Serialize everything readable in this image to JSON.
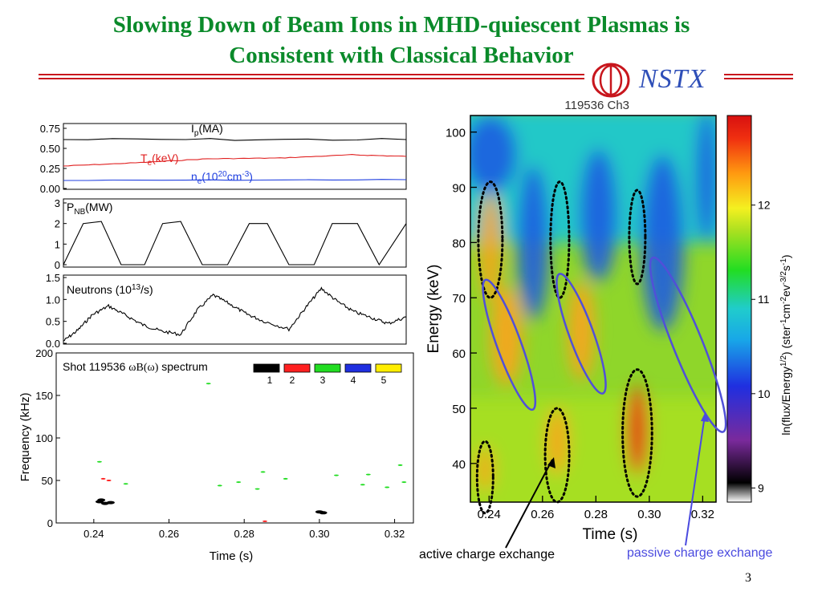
{
  "slide": {
    "title_line1": "Slowing Down of Beam Ions in MHD-quiescent Plasmas is",
    "title_line2": "Consistent with Classical Behavior",
    "logo_text": "NSTX",
    "page_number": "3"
  },
  "colors": {
    "title_green": "#0a8a2a",
    "rule_red": "#c8161d",
    "nstx_blue": "#2f4fb8",
    "annotation_blue": "#4a4adf"
  },
  "chart_data": [
    {
      "type": "line",
      "panel": "plasma-parameters",
      "ylim": [
        0,
        0.75
      ],
      "yticks": [
        "0.75",
        "0.50",
        "0.25",
        "0.00"
      ],
      "xlim": [
        0.23,
        0.325
      ],
      "series": [
        {
          "name": "Ip(MA)",
          "label_parts": [
            "I",
            "p",
            "(MA)"
          ],
          "color": "#000000",
          "x": [
            0.23,
            0.325
          ],
          "values": [
            0.61,
            0.61
          ]
        },
        {
          "name": "Te(keV)",
          "label_parts": [
            "T",
            "e",
            "(keV)"
          ],
          "color": "#e02020",
          "x": [
            0.23,
            0.25,
            0.27,
            0.29,
            0.31,
            0.325
          ],
          "values": [
            0.28,
            0.32,
            0.37,
            0.38,
            0.42,
            0.4
          ]
        },
        {
          "name": "ne(10^20cm^-3)",
          "label_parts": [
            "n",
            "e",
            "(10",
            "20",
            "cm",
            "-3",
            ")"
          ],
          "color": "#2040e0",
          "x": [
            0.23,
            0.325
          ],
          "values": [
            0.1,
            0.11
          ]
        }
      ]
    },
    {
      "type": "line",
      "panel": "beam-power",
      "ylabel_parts": [
        "P",
        "NB",
        "(MW)"
      ],
      "ylim": [
        0,
        3
      ],
      "yticks": [
        "3",
        "2",
        "1",
        "0"
      ],
      "xlim": [
        0.23,
        0.325
      ],
      "x": [
        0.23,
        0.2355,
        0.2405,
        0.246,
        0.2525,
        0.2575,
        0.2625,
        0.2685,
        0.2755,
        0.2815,
        0.2865,
        0.2925,
        0.2995,
        0.3045,
        0.3115,
        0.3175,
        0.325
      ],
      "values": [
        0,
        2.0,
        2.1,
        0,
        0,
        2.0,
        2.1,
        0,
        0,
        2.0,
        2.0,
        0,
        0,
        2.0,
        2.0,
        0,
        2.0
      ]
    },
    {
      "type": "line",
      "panel": "neutrons",
      "label": "Neutrons (10",
      "label_sup": "13",
      "label_end": "/s)",
      "ylim": [
        0,
        1.5
      ],
      "yticks": [
        "1.5",
        "1.0",
        "0.5",
        "0.0"
      ],
      "xlim": [
        0.23,
        0.325
      ],
      "x": [
        0.23,
        0.234,
        0.238,
        0.2425,
        0.247,
        0.252,
        0.257,
        0.2625,
        0.267,
        0.2715,
        0.276,
        0.2805,
        0.285,
        0.2925,
        0.297,
        0.3015,
        0.306,
        0.3105,
        0.3155,
        0.32,
        0.325
      ],
      "values": [
        0.05,
        0.3,
        0.65,
        0.85,
        0.65,
        0.42,
        0.28,
        0.2,
        0.75,
        1.1,
        0.9,
        0.68,
        0.52,
        0.32,
        0.8,
        1.25,
        0.95,
        0.72,
        0.58,
        0.45,
        0.6
      ]
    },
    {
      "type": "scatter",
      "panel": "mhd-spectrum",
      "title_prefix": "Shot 119536 ",
      "title_symbol": "ωB(ω)",
      "title_suffix": " spectrum",
      "xlabel": "Time (s)",
      "ylabel": "Frequency (kHz)",
      "xlim": [
        0.23,
        0.325
      ],
      "ylim": [
        0,
        200
      ],
      "xticks": [
        "0.24",
        "0.26",
        "0.28",
        "0.30",
        "0.32"
      ],
      "yticks": [
        "200",
        "150",
        "100",
        "50",
        "0"
      ],
      "legend": [
        {
          "label": "1",
          "color": "#000000"
        },
        {
          "label": "2",
          "color": "#ff2020"
        },
        {
          "label": "3",
          "color": "#22dd22"
        },
        {
          "label": "4",
          "color": "#1f2fe0"
        },
        {
          "label": "5",
          "color": "#ffee00"
        }
      ],
      "points": [
        {
          "x": 0.2415,
          "y": 25,
          "n": 1
        },
        {
          "x": 0.243,
          "y": 23,
          "n": 1
        },
        {
          "x": 0.2445,
          "y": 24,
          "n": 1
        },
        {
          "x": 0.242,
          "y": 27,
          "n": 1
        },
        {
          "x": 0.301,
          "y": 12,
          "n": 1
        },
        {
          "x": 0.3,
          "y": 13,
          "n": 1
        },
        {
          "x": 0.2425,
          "y": 52,
          "n": 2
        },
        {
          "x": 0.244,
          "y": 50,
          "n": 2
        },
        {
          "x": 0.2415,
          "y": 72,
          "n": 3
        },
        {
          "x": 0.2485,
          "y": 46,
          "n": 3
        },
        {
          "x": 0.2705,
          "y": 164,
          "n": 3
        },
        {
          "x": 0.2735,
          "y": 44,
          "n": 3
        },
        {
          "x": 0.2785,
          "y": 48,
          "n": 3
        },
        {
          "x": 0.285,
          "y": 60,
          "n": 3
        },
        {
          "x": 0.2835,
          "y": 40,
          "n": 3
        },
        {
          "x": 0.291,
          "y": 52,
          "n": 3
        },
        {
          "x": 0.3045,
          "y": 56,
          "n": 3
        },
        {
          "x": 0.3115,
          "y": 45,
          "n": 3
        },
        {
          "x": 0.313,
          "y": 57,
          "n": 3
        },
        {
          "x": 0.318,
          "y": 42,
          "n": 3
        },
        {
          "x": 0.3215,
          "y": 68,
          "n": 3
        },
        {
          "x": 0.3225,
          "y": 48,
          "n": 3
        },
        {
          "x": 0.2855,
          "y": 2,
          "n": 2
        }
      ]
    },
    {
      "type": "heatmap",
      "panel": "ion-energy-spectrogram",
      "title": "119536 Ch3",
      "xlabel": "Time (s)",
      "ylabel": "Energy (keV)",
      "colorbar_label": "ln(flux/Energy^(1/2)) (ster^-1cm^-2ev^-3/2s^-1)",
      "colorbar_label_parts": [
        "ln(flux/Energy",
        "1/2",
        ") (ster",
        "-1",
        "cm",
        "-2",
        "ev",
        "-3/2",
        "s",
        "-1",
        ")"
      ],
      "xlim": [
        0.233,
        0.325
      ],
      "ylim": [
        33,
        103
      ],
      "xticks": [
        "0.24",
        "0.26",
        "0.28",
        "0.30",
        "0.32"
      ],
      "yticks": [
        "100",
        "90",
        "80",
        "70",
        "60",
        "50",
        "40"
      ],
      "colorbar_ticks": [
        "12",
        "11",
        "10",
        "9"
      ],
      "colorbar_range": [
        8.85,
        12.95
      ],
      "annotations": [
        {
          "label": "active charge exchange",
          "color": "#000000"
        },
        {
          "label": "passive charge exchange",
          "color": "#4a4adf"
        }
      ],
      "features": [
        {
          "kind": "hot",
          "t": 0.2405,
          "E": 79,
          "st": 0.004,
          "sE": 10
        },
        {
          "kind": "hot",
          "t": 0.2465,
          "E": 63,
          "st": 0.006,
          "sE": 9
        },
        {
          "kind": "hot",
          "t": 0.2385,
          "E": 39,
          "st": 0.003,
          "sE": 4
        },
        {
          "kind": "hot",
          "t": 0.2655,
          "E": 44,
          "st": 0.004,
          "sE": 6
        },
        {
          "kind": "hot",
          "t": 0.2745,
          "E": 64,
          "st": 0.005,
          "sE": 9
        },
        {
          "kind": "very-hot",
          "t": 0.2955,
          "E": 46,
          "st": 0.004,
          "sE": 8
        },
        {
          "kind": "cool",
          "t": 0.2405,
          "E": 96,
          "st": 0.01,
          "sE": 7
        },
        {
          "kind": "cool",
          "t": 0.2565,
          "E": 80,
          "st": 0.006,
          "sE": 14
        },
        {
          "kind": "cool",
          "t": 0.281,
          "E": 85,
          "st": 0.007,
          "sE": 12
        },
        {
          "kind": "cool",
          "t": 0.305,
          "E": 80,
          "st": 0.008,
          "sE": 16
        },
        {
          "kind": "cool",
          "t": 0.3215,
          "E": 92,
          "st": 0.004,
          "sE": 12
        }
      ],
      "ellipses": [
        {
          "style": "dotted",
          "t": 0.2405,
          "E": 80.5,
          "rt": 0.0045,
          "rE": 10.5,
          "angle": 0
        },
        {
          "style": "dotted",
          "t": 0.2665,
          "E": 80.5,
          "rt": 0.0035,
          "rE": 10.5,
          "angle": 0
        },
        {
          "style": "dotted",
          "t": 0.2955,
          "E": 81,
          "rt": 0.003,
          "rE": 8.5,
          "angle": 0
        },
        {
          "style": "dotted",
          "t": 0.2385,
          "E": 37.5,
          "rt": 0.003,
          "rE": 6.5,
          "angle": 0
        },
        {
          "style": "dotted",
          "t": 0.2655,
          "E": 41.5,
          "rt": 0.0045,
          "rE": 8.5,
          "angle": 0
        },
        {
          "style": "dotted",
          "t": 0.2955,
          "E": 45.5,
          "rt": 0.0055,
          "rE": 11.5,
          "angle": 0
        },
        {
          "style": "solid",
          "t": 0.2475,
          "E": 61.5,
          "rt": 0.0045,
          "rE": 12.5,
          "angle": -20
        },
        {
          "style": "solid",
          "t": 0.2745,
          "E": 63.5,
          "rt": 0.0045,
          "rE": 11.5,
          "angle": -20
        },
        {
          "style": "solid",
          "t": 0.3145,
          "E": 61.5,
          "rt": 0.0055,
          "rE": 17,
          "angle": -22
        }
      ]
    }
  ]
}
